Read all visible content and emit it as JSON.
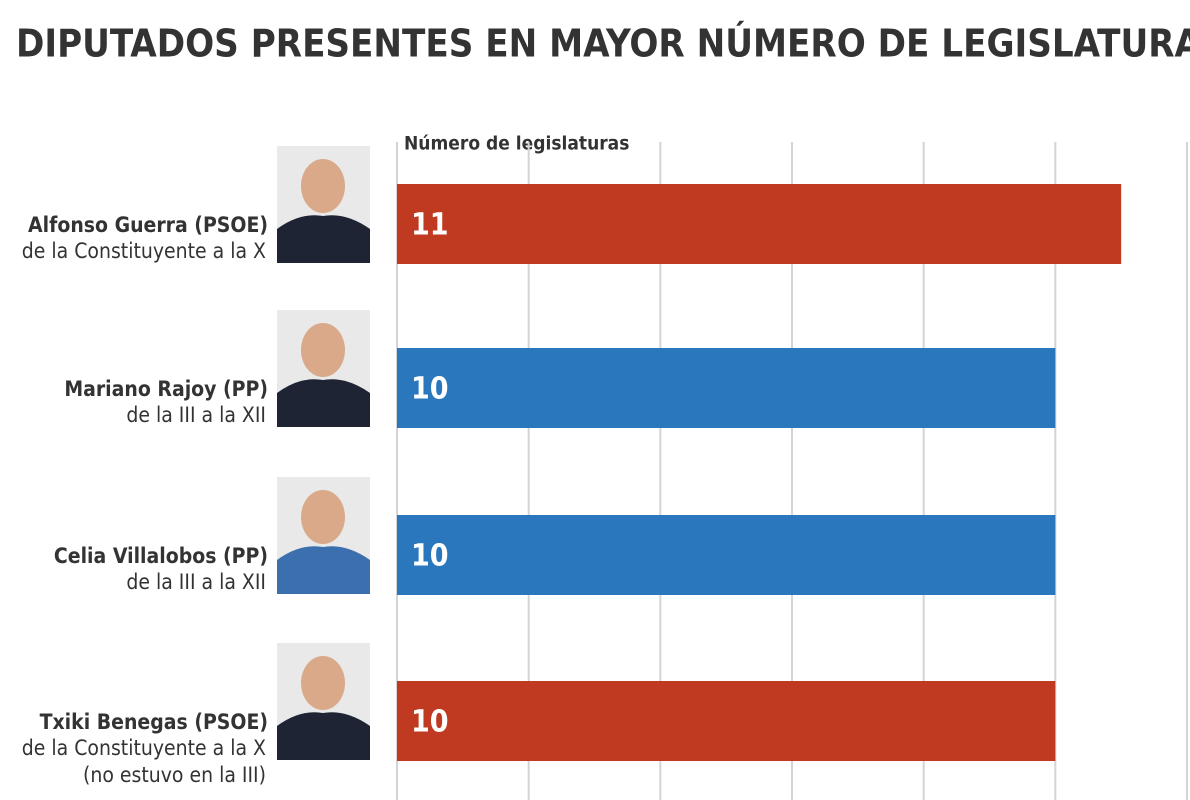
{
  "chart_data": {
    "type": "bar",
    "orientation": "horizontal",
    "title": "DIPUTADOS PRESENTES EN MAYOR NÚMERO DE LEGISLATURAS",
    "x_label": "Número de legislaturas",
    "categories": [
      {
        "name": "Alfonso Guerra (PSOE)",
        "detail": [
          "de la Constituyente a la X"
        ]
      },
      {
        "name": "Mariano Rajoy (PP)",
        "detail": [
          "de la III a la XII"
        ]
      },
      {
        "name": "Celia Villalobos (PP)",
        "detail": [
          "de la III a la XII"
        ]
      },
      {
        "name": "Txiki Benegas (PSOE)",
        "detail": [
          "de la Constituyente a la X",
          "(no estuvo en la III)"
        ]
      }
    ],
    "values": [
      11,
      10,
      10,
      10
    ],
    "colors": [
      "#bf3a20",
      "#2a77bd",
      "#2a77bd",
      "#bf3a20"
    ],
    "xlim": [
      0,
      12
    ],
    "xticks": [
      0,
      2,
      4,
      6,
      8,
      10,
      12
    ],
    "grid": true
  }
}
